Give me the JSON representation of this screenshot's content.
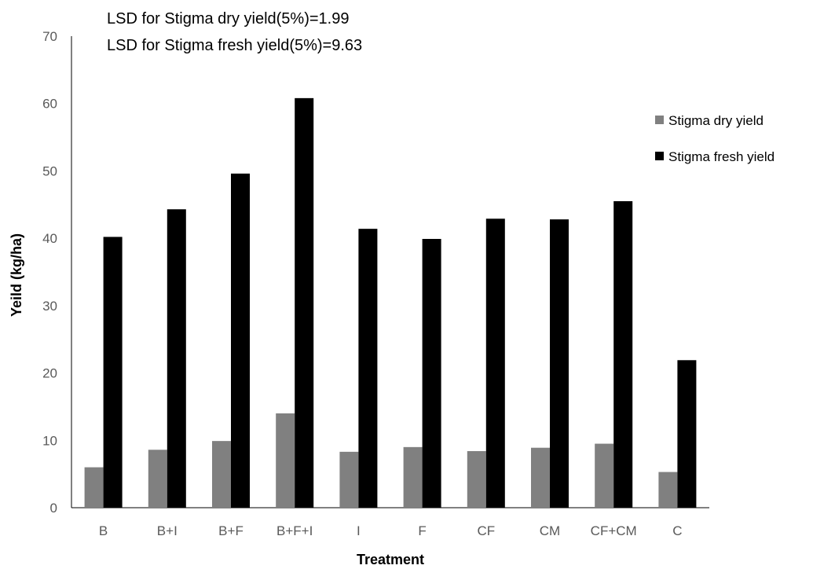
{
  "chart_data": {
    "type": "bar",
    "annotations": [
      "LSD for Stigma dry yield(5%)=1.99",
      "LSD for Stigma fresh yield(5%)=9.63"
    ],
    "xlabel": "Treatment",
    "ylabel": "Yeild (kg/ha)",
    "ylim": [
      0,
      70
    ],
    "yticks": [
      "0",
      "10",
      "20",
      "30",
      "40",
      "50",
      "60",
      "70"
    ],
    "categories": [
      "B",
      "B+I",
      "B+F",
      "B+F+I",
      "I",
      "F",
      "CF",
      "CM",
      "CF+CM",
      "C"
    ],
    "series": [
      {
        "name": "Stigma dry yield",
        "color": "#808080",
        "values": [
          6.0,
          8.6,
          9.9,
          14.0,
          8.3,
          9.0,
          8.4,
          8.9,
          9.5,
          5.3
        ]
      },
      {
        "name": "Stigma fresh yield",
        "color": "#000000",
        "values": [
          40.2,
          44.3,
          49.6,
          60.8,
          41.4,
          39.9,
          42.9,
          42.8,
          45.5,
          21.9
        ]
      }
    ],
    "legend_position": "right",
    "grid": false
  }
}
